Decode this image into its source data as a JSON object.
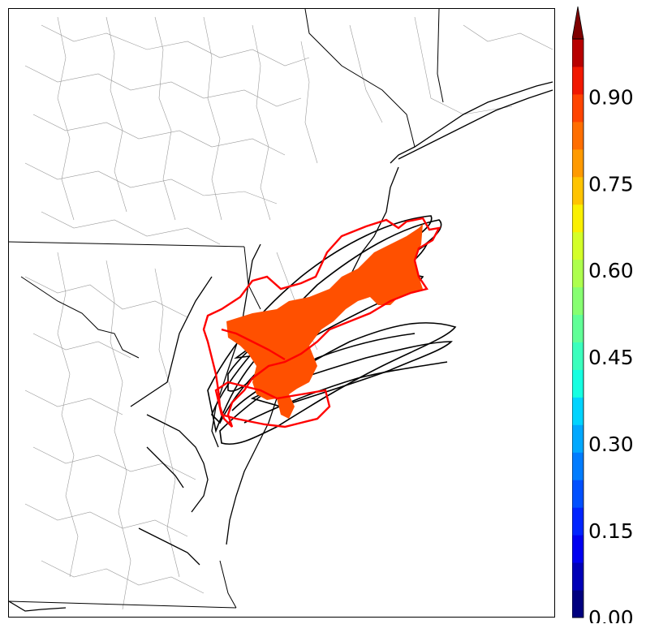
{
  "colorbar": {
    "min": 0.0,
    "max": 1.0,
    "tick_labels": [
      "0.00",
      "0.15",
      "0.30",
      "0.45",
      "0.60",
      "0.75",
      "0.90"
    ],
    "tick_values": [
      0.0,
      0.15,
      0.3,
      0.45,
      0.6,
      0.75,
      0.9
    ],
    "extend": "max",
    "colors": [
      "#00007f",
      "#0000b8",
      "#0000f1",
      "#0024ff",
      "#0050ff",
      "#007cff",
      "#00a8ff",
      "#00d4ff",
      "#16ffe1",
      "#3bffbd",
      "#61ff97",
      "#87ff71",
      "#adff4d",
      "#d4ff28",
      "#faf000",
      "#ffc400",
      "#ff9a00",
      "#ff6e00",
      "#ff4400",
      "#f11800",
      "#b80000",
      "#7f0000"
    ]
  },
  "map": {
    "shaded_region_color": "#ff5000",
    "ensemble_contour_color": "#000000",
    "outline_contour_color": "#ff0000"
  }
}
